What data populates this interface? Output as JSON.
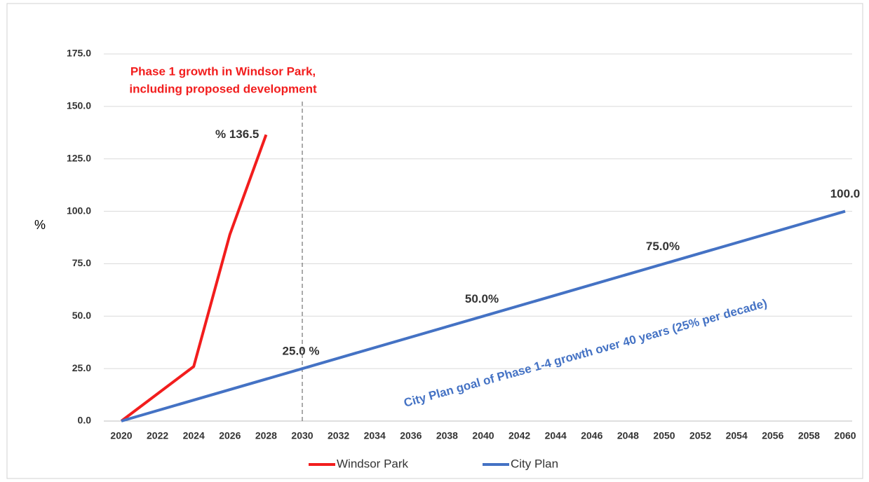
{
  "chart_data": {
    "type": "line",
    "ylabel": "%",
    "xlim": [
      2020,
      2060
    ],
    "xticks": [
      2020,
      2022,
      2024,
      2026,
      2028,
      2030,
      2032,
      2034,
      2036,
      2038,
      2040,
      2042,
      2044,
      2046,
      2048,
      2050,
      2052,
      2054,
      2056,
      2058,
      2060
    ],
    "ylim": [
      0,
      175
    ],
    "yticks": [
      {
        "value": 0,
        "label": "0.0"
      },
      {
        "value": 25,
        "label": "25.0"
      },
      {
        "value": 50,
        "label": "50.0"
      },
      {
        "value": 75,
        "label": "75.0"
      },
      {
        "value": 100,
        "label": "100.0"
      },
      {
        "value": 125,
        "label": "125.0"
      },
      {
        "value": 150,
        "label": "150.0"
      },
      {
        "value": 175,
        "label": "175.0"
      }
    ],
    "grid": true,
    "legend": "bottom",
    "series": [
      {
        "name": "Windsor Park",
        "color": "#f21d1d",
        "x": [
          2020,
          2024,
          2026,
          2028
        ],
        "values": [
          0,
          26,
          89,
          136.5
        ],
        "value_labels": [
          null,
          null,
          null,
          "% 136.5"
        ]
      },
      {
        "name": "City Plan",
        "color": "#4472c4",
        "x": [
          2020,
          2030,
          2040,
          2050,
          2060
        ],
        "values": [
          0,
          25,
          50,
          75,
          100
        ],
        "value_labels": [
          null,
          "25.0 %",
          "50.0%",
          "75.0%",
          "100.0"
        ]
      }
    ],
    "reference_line_x": 2030,
    "annotations": [
      {
        "lines": [
          "Phase 1 growth in Windsor Park,",
          "including proposed development"
        ],
        "color": "#f21d1d"
      },
      {
        "text": "City Plan goal of Phase 1-4 growth over 40 years (25% per decade)",
        "color": "#4472c4"
      }
    ]
  }
}
